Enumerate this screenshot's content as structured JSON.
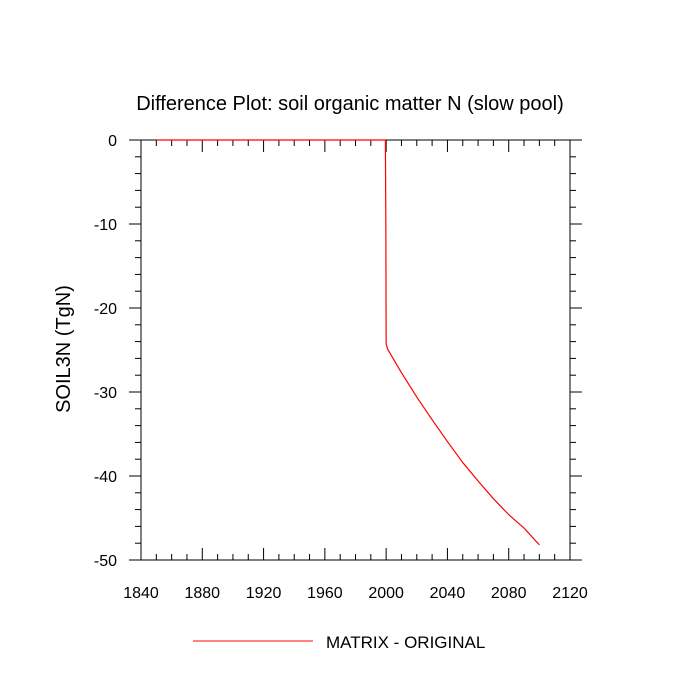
{
  "chart_data": {
    "type": "line",
    "title": "Difference Plot: soil organic matter N (slow pool)",
    "xlabel": "",
    "ylabel": "SOIL3N  (TgN)",
    "xlim": [
      1840,
      2120
    ],
    "ylim": [
      -50,
      0
    ],
    "x_ticks": [
      1840,
      1880,
      1920,
      1960,
      2000,
      2040,
      2080,
      2120
    ],
    "x_tick_labels": [
      "1840",
      "1880",
      "1920",
      "1960",
      "2000",
      "2040",
      "2080",
      "2120"
    ],
    "y_ticks": [
      0,
      -10,
      -20,
      -30,
      -40,
      -50
    ],
    "y_tick_labels": [
      "0",
      "-10",
      "-20",
      "-30",
      "-40",
      "-50"
    ],
    "grid": false,
    "legend_position": "bottom-center",
    "series": [
      {
        "name": "MATRIX - ORIGINAL",
        "color": "#ff0000",
        "x": [
          1850,
          1999.5,
          1999.8,
          2000,
          2001,
          2010,
          2020,
          2030,
          2040,
          2050,
          2060,
          2070,
          2080,
          2090,
          2100
        ],
        "y": [
          0,
          0,
          -10.0,
          -24.3,
          -24.9,
          -27.7,
          -30.6,
          -33.3,
          -35.9,
          -38.4,
          -40.6,
          -42.7,
          -44.6,
          -46.2,
          -48.2
        ]
      }
    ]
  }
}
